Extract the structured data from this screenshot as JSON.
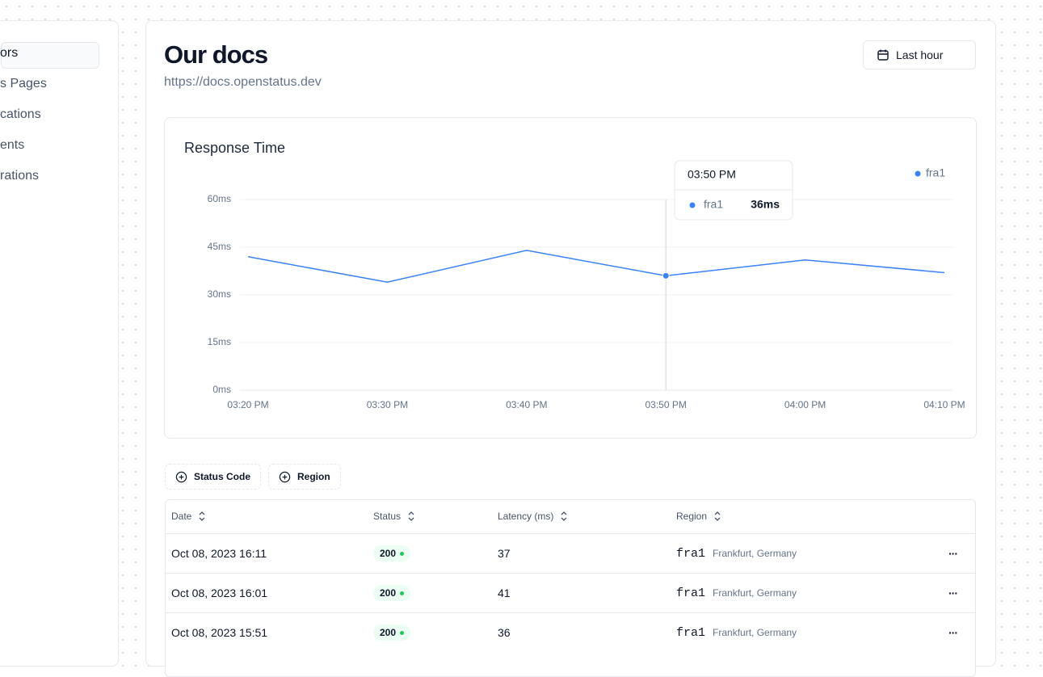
{
  "sidebar": {
    "items": [
      "ors",
      "s Pages",
      "cations",
      "ents",
      "rations"
    ]
  },
  "header": {
    "title": "Our docs",
    "url": "https://docs.openstatus.dev",
    "range_button": "Last hour"
  },
  "chart_data": {
    "type": "line",
    "title": "Response Time",
    "categories": [
      "03:20 PM",
      "03:30 PM",
      "03:40 PM",
      "03:50 PM",
      "04:00 PM",
      "04:10 PM"
    ],
    "series": [
      {
        "name": "fra1",
        "color": "#3b82f6",
        "values": [
          42,
          34,
          44,
          36,
          41,
          37
        ]
      }
    ],
    "ylim": [
      0,
      60
    ],
    "yticks": [
      {
        "value": 0,
        "label": "0ms"
      },
      {
        "value": 15,
        "label": "15ms"
      },
      {
        "value": 30,
        "label": "30ms"
      },
      {
        "value": 45,
        "label": "45ms"
      },
      {
        "value": 60,
        "label": "60ms"
      }
    ],
    "grid": true,
    "legend": "top-right",
    "tooltip": {
      "title": "03:50 PM",
      "label": "fra1",
      "value_label": "36ms"
    }
  },
  "filters": [
    "Status Code",
    "Region"
  ],
  "table": {
    "headers": [
      "Date",
      "Status",
      "Latency (ms)",
      "Region"
    ],
    "rows": [
      [
        "Oct 08, 2023 16:11",
        "200",
        "37",
        "fra1",
        "Frankfurt, Germany"
      ],
      [
        "Oct 08, 2023 16:01",
        "200",
        "41",
        "fra1",
        "Frankfurt, Germany"
      ],
      [
        "Oct 08, 2023 15:51",
        "200",
        "36",
        "fra1",
        "Frankfurt, Germany"
      ]
    ]
  }
}
